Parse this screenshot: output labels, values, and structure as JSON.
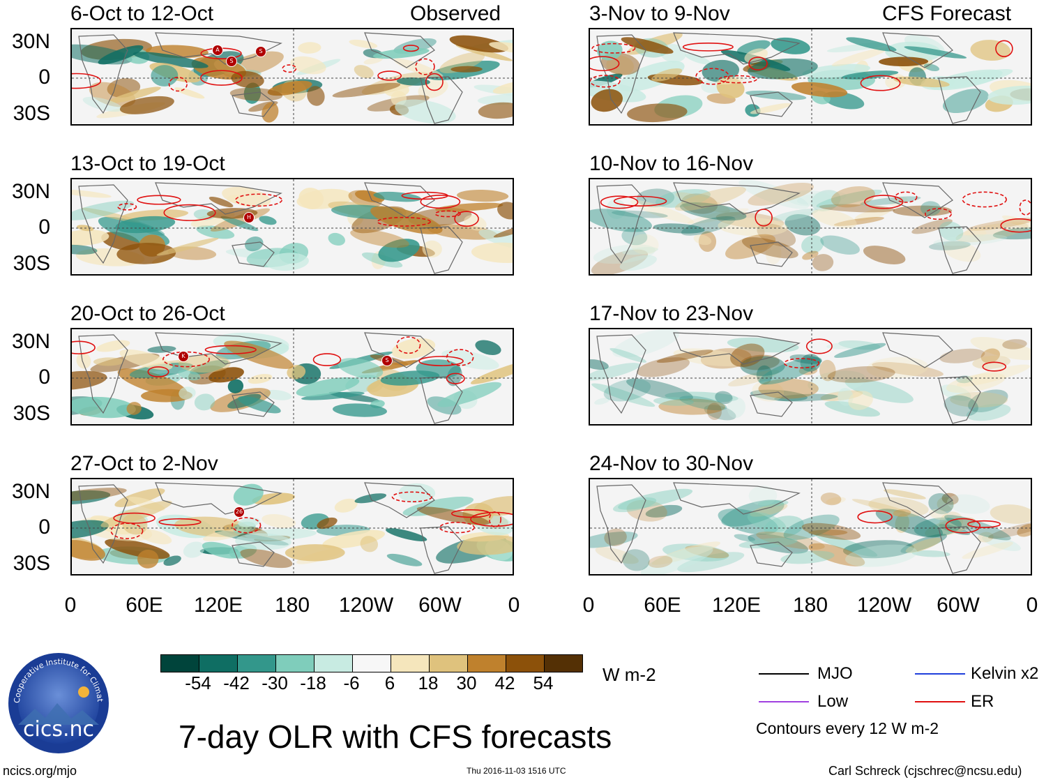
{
  "panels": [
    {
      "title": "6-Oct to 12-Oct",
      "tag": "Observed",
      "column": "left"
    },
    {
      "title": "13-Oct to 19-Oct",
      "tag": "",
      "column": "left"
    },
    {
      "title": "20-Oct to 26-Oct",
      "tag": "",
      "column": "left"
    },
    {
      "title": "27-Oct to 2-Nov",
      "tag": "",
      "column": "left"
    },
    {
      "title": "3-Nov to 9-Nov",
      "tag": "CFS Forecast",
      "column": "right"
    },
    {
      "title": "10-Nov to 16-Nov",
      "tag": "",
      "column": "right"
    },
    {
      "title": "17-Nov to 23-Nov",
      "tag": "",
      "column": "right"
    },
    {
      "title": "24-Nov to 30-Nov",
      "tag": "",
      "column": "right"
    }
  ],
  "storm_markers": {
    "panel_1": [
      "A",
      "S",
      "S"
    ],
    "panel_2": [
      "H"
    ],
    "panel_3": [
      "K",
      "S"
    ],
    "panel_4": [
      "26"
    ]
  },
  "y_ticks": [
    "30N",
    "0",
    "30S"
  ],
  "x_ticks": [
    "0",
    "60E",
    "120E",
    "180",
    "120W",
    "60W",
    "0"
  ],
  "colorbar": {
    "labels": [
      "-54",
      "-42",
      "-30",
      "-18",
      "-6",
      "6",
      "18",
      "30",
      "42",
      "54"
    ],
    "colors": [
      "#00443b",
      "#0f6e63",
      "#33978b",
      "#7fcdbb",
      "#c8ebe2",
      "#f7f7f7",
      "#f5e6bc",
      "#dfc27d",
      "#bf812d",
      "#8c510a",
      "#543005"
    ],
    "units": "W m-2"
  },
  "legend": {
    "items": [
      {
        "label": "MJO",
        "color": "#000000"
      },
      {
        "label": "Kelvin x2",
        "color": "#1f3fdc"
      },
      {
        "label": "Low",
        "color": "#a040e0"
      },
      {
        "label": "ER",
        "color": "#e01010"
      }
    ],
    "note": "Contours every 12 W m-2"
  },
  "logo": {
    "text": "cics.nc",
    "ring_text": "Cooperative Institute for Climate and Satellites"
  },
  "main_title": "7-day OLR with CFS forecasts",
  "footer": {
    "left": "ncics.org/mjo",
    "center": "Thu 2016-11-03 1516 UTC",
    "right": "Carl Schreck (cjschrec@ncsu.edu)"
  }
}
